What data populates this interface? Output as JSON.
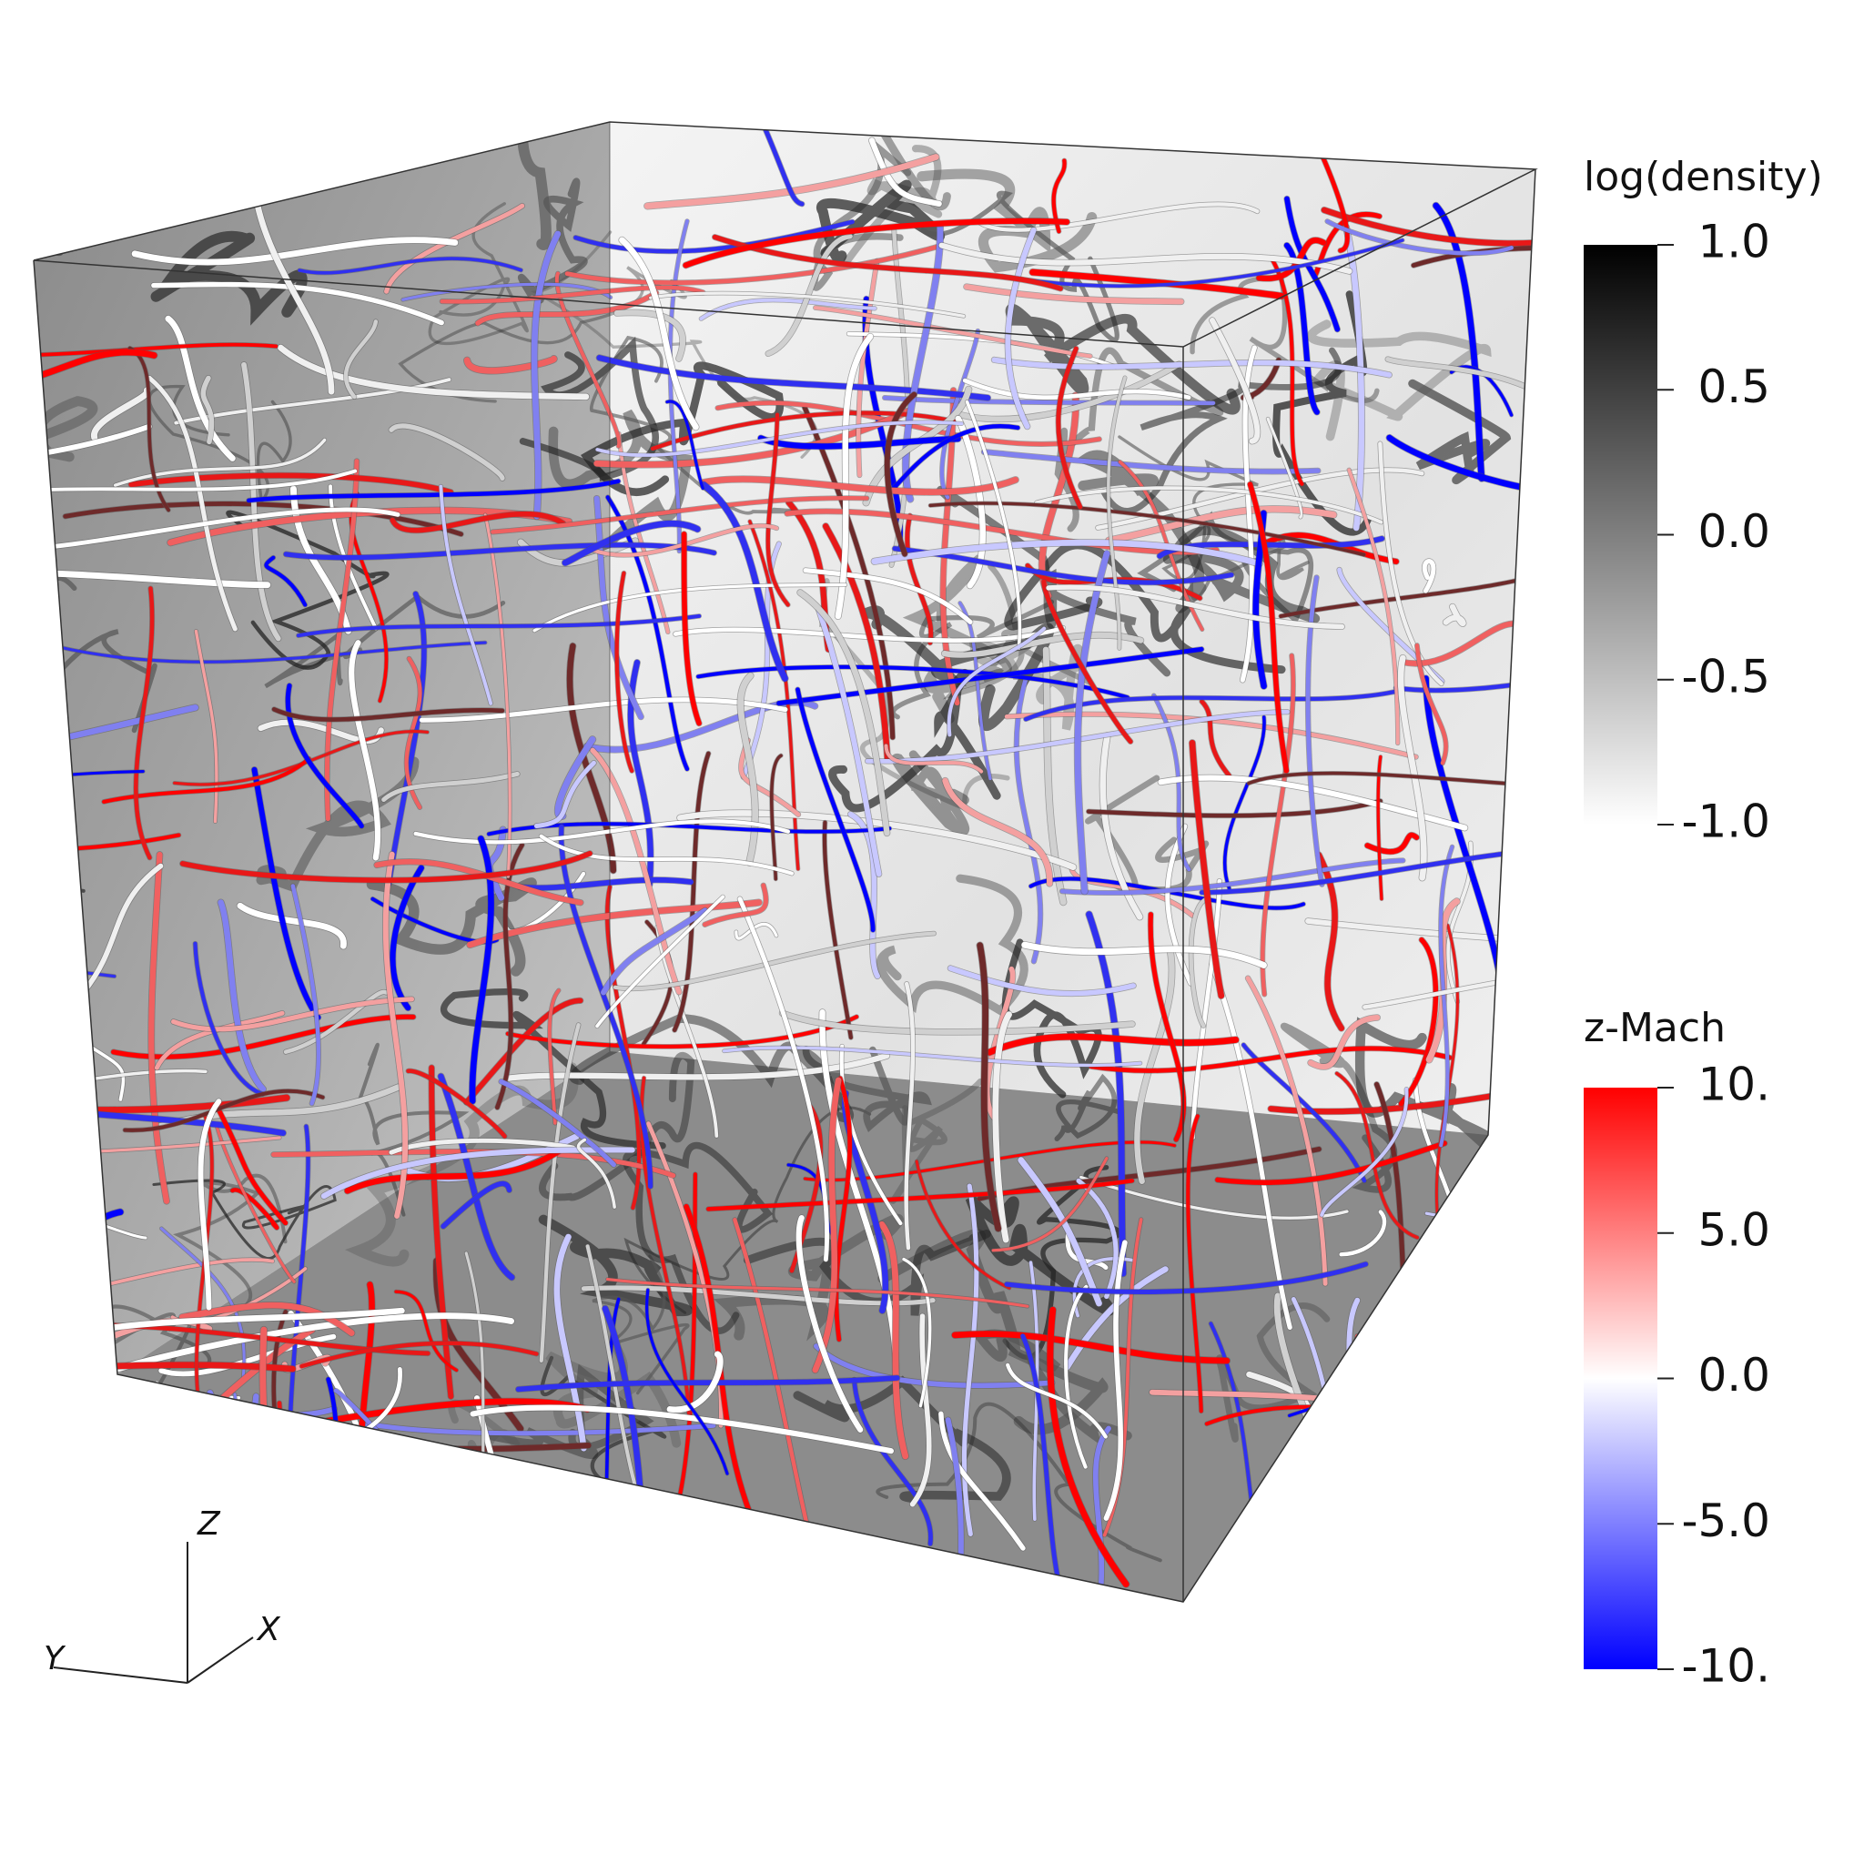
{
  "colorbars": [
    {
      "title": "log(density)",
      "range": [
        -1,
        1
      ],
      "colors": [
        "#ffffff",
        "#000000"
      ],
      "ticks": [
        {
          "value": 1,
          "label": "1.0"
        },
        {
          "value": 0.5,
          "label": "0.5"
        },
        {
          "value": 0,
          "label": "0.0"
        },
        {
          "value": -0.5,
          "label": "-0.5"
        },
        {
          "value": -1,
          "label": "-1.0"
        }
      ]
    },
    {
      "title": "z-Mach",
      "range": [
        -10,
        10
      ],
      "colors": [
        "#0000ff",
        "#ffffff",
        "#ff0000"
      ],
      "ticks": [
        {
          "value": 10,
          "label": "10."
        },
        {
          "value": 5,
          "label": "5.0"
        },
        {
          "value": 0,
          "label": "0.0"
        },
        {
          "value": -5,
          "label": "-5.0"
        },
        {
          "value": -10,
          "label": "-10."
        }
      ]
    }
  ],
  "axes": {
    "z": "Z",
    "x": "X",
    "y": "Y"
  }
}
